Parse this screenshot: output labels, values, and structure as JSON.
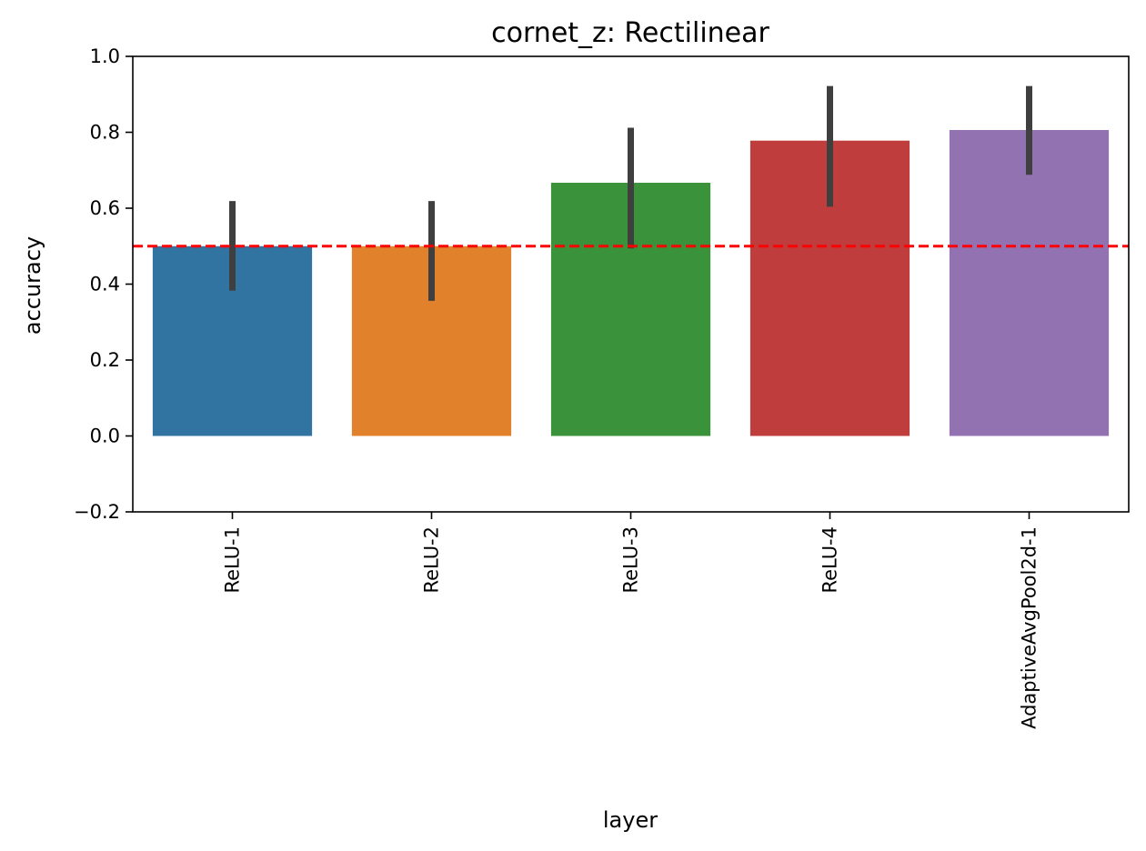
{
  "chart_data": {
    "type": "bar",
    "title": "cornet_z: Rectilinear",
    "xlabel": "layer",
    "ylabel": "accuracy",
    "ylim": [
      -0.2,
      1.0
    ],
    "yticks": [
      -0.2,
      0.0,
      0.2,
      0.4,
      0.6,
      0.8,
      1.0
    ],
    "ytick_labels": [
      "−0.2",
      "0.0",
      "0.2",
      "0.4",
      "0.6",
      "0.8",
      "1.0"
    ],
    "categories": [
      "ReLU-1",
      "ReLU-2",
      "ReLU-3",
      "ReLU-4",
      "AdaptiveAvgPool2d-1"
    ],
    "values": [
      0.5,
      0.5,
      0.667,
      0.778,
      0.806
    ],
    "error_low": [
      0.383,
      0.356,
      0.494,
      0.604,
      0.688
    ],
    "error_high": [
      0.619,
      0.619,
      0.812,
      0.922,
      0.922
    ],
    "colors": [
      "#3274a1",
      "#e1812c",
      "#3a923a",
      "#c03d3e",
      "#9372b2"
    ],
    "error_bar_color": "#3f3f3f",
    "reference_line": {
      "y": 0.5,
      "color": "#ff0000",
      "style": "dashed"
    },
    "grid": false,
    "legend": "none"
  }
}
